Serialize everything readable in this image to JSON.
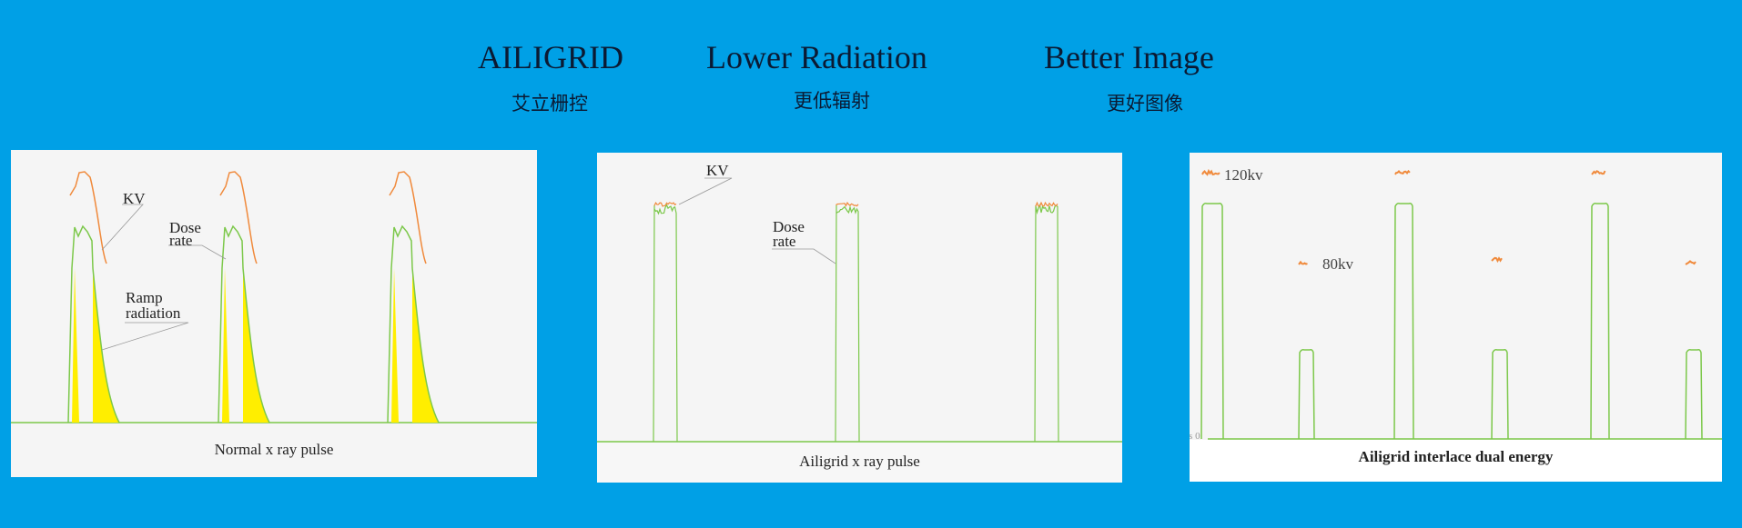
{
  "header": {
    "items": [
      {
        "title": "AILIGRID",
        "subtitle": "艾立栅控"
      },
      {
        "title": "Lower Radiation",
        "subtitle": "更低辐射"
      },
      {
        "title": "Better Image",
        "subtitle": "更好图像"
      }
    ]
  },
  "panels": [
    {
      "caption": "Normal x ray pulse",
      "labels": {
        "kv": "KV",
        "dose_1": "Dose",
        "dose_2": "rate",
        "ramp_1": "Ramp",
        "ramp_2": "radiation"
      }
    },
    {
      "caption": "Ailigrid x ray pulse",
      "labels": {
        "kv": "KV",
        "dose_1": "Dose",
        "dose_2": "rate"
      }
    },
    {
      "caption": "Ailigrid interlace dual energy",
      "labels": {
        "high": "120kv",
        "low": "80kv",
        "axis": "/s  0"
      }
    }
  ],
  "colors": {
    "background": "#00a0e6",
    "dose_rate": "#7cc84a",
    "kv": "#f08a3c",
    "ramp_fill": "#ffee00",
    "panel": "#f5f5f5"
  }
}
